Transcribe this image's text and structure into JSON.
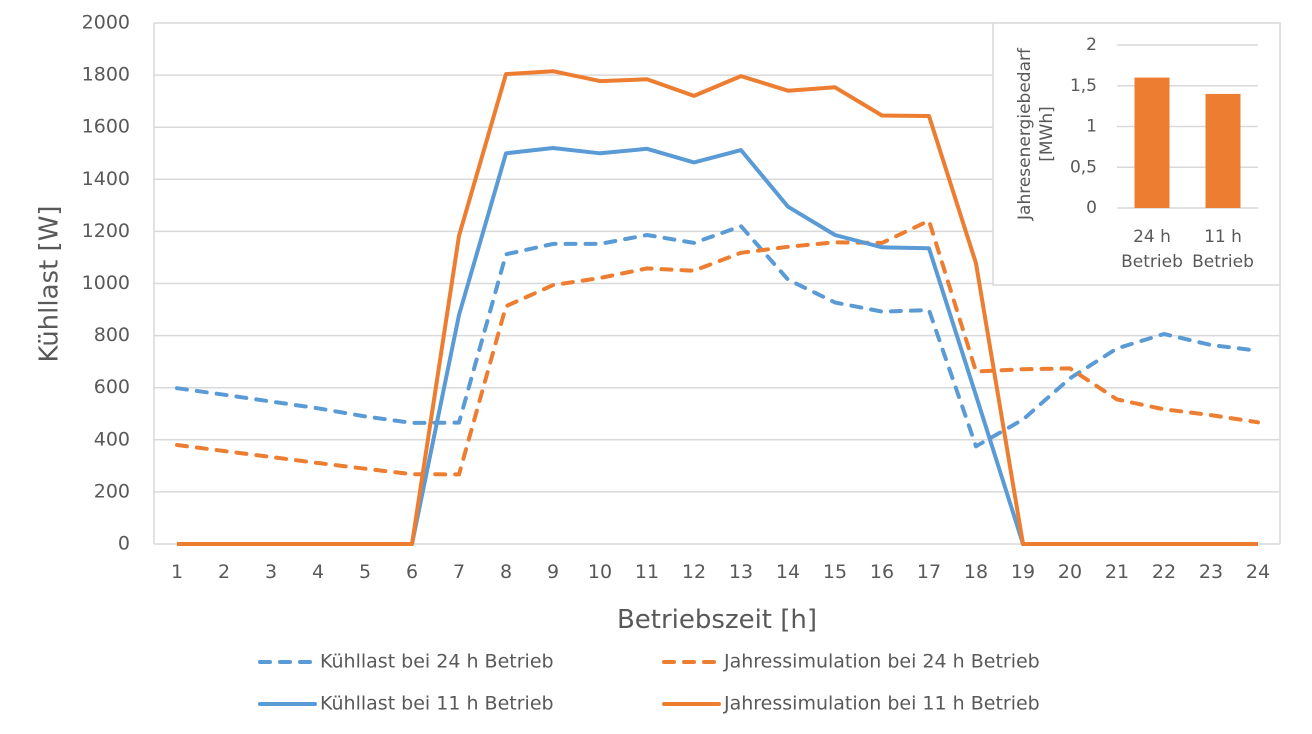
{
  "chart_data": [
    {
      "type": "line",
      "title": "",
      "xlabel": "Betriebszeit [h]",
      "ylabel": "Kühllast [W]",
      "ylim": [
        0,
        2000
      ],
      "yticks": [
        "0",
        "200",
        "400",
        "600",
        "800",
        "1000",
        "1200",
        "1400",
        "1600",
        "1800",
        "2000"
      ],
      "ytick_values": [
        0,
        200,
        400,
        600,
        800,
        1000,
        1200,
        1400,
        1600,
        1800,
        2000
      ],
      "x": [
        "1",
        "2",
        "3",
        "4",
        "5",
        "6",
        "7",
        "8",
        "9",
        "10",
        "11",
        "12",
        "13",
        "14",
        "15",
        "16",
        "17",
        "18",
        "19",
        "20",
        "21",
        "22",
        "23",
        "24"
      ],
      "grid": true,
      "legend_position": "bottom",
      "series": [
        {
          "name": "Kühllast bei 24 h Betrieb",
          "color": "#5B9BD5",
          "style": "dashed",
          "values": [
            598,
            573,
            547,
            521,
            490,
            465,
            466,
            1112,
            1152,
            1152,
            1186,
            1156,
            1220,
            1015,
            927,
            892,
            898,
            375,
            478,
            636,
            751,
            806,
            764,
            742
          ]
        },
        {
          "name": "Jahressimulation bei 24 h Betrieb",
          "color": "#ED7D31",
          "style": "dashed",
          "values": [
            380,
            357,
            334,
            311,
            289,
            268,
            267,
            913,
            994,
            1021,
            1058,
            1049,
            1118,
            1141,
            1158,
            1156,
            1241,
            662,
            671,
            674,
            555,
            517,
            495,
            467
          ]
        },
        {
          "name": "Kühllast bei 11 h Betrieb",
          "color": "#5B9BD5",
          "style": "solid",
          "values": [
            0,
            0,
            0,
            0,
            0,
            0,
            879,
            1500,
            1520,
            1500,
            1517,
            1465,
            1512,
            1295,
            1186,
            1139,
            1135,
            570,
            0,
            0,
            0,
            0,
            0,
            0
          ]
        },
        {
          "name": "Jahressimulation bei 11 h Betrieb",
          "color": "#ED7D31",
          "style": "solid",
          "values": [
            0,
            0,
            0,
            0,
            0,
            0,
            1183,
            1804,
            1815,
            1777,
            1784,
            1720,
            1796,
            1740,
            1753,
            1645,
            1643,
            1077,
            0,
            0,
            0,
            0,
            0,
            0
          ]
        }
      ]
    },
    {
      "type": "bar",
      "title": "",
      "ylabel": "Jahresenergiebedarf [MWh]",
      "ylabel_lines": [
        "Jahresenergiebedarf",
        "[MWh]"
      ],
      "ylim": [
        0,
        2
      ],
      "yticks": [
        "0",
        "0,5",
        "1",
        "1,5",
        "2"
      ],
      "ytick_values": [
        0,
        0.5,
        1,
        1.5,
        2
      ],
      "categories": [
        "24 h Betrieb",
        "11 h Betrieb"
      ],
      "category_lines": [
        [
          "24 h",
          "Betrieb"
        ],
        [
          "11 h",
          "Betrieb"
        ]
      ],
      "values": [
        1.6,
        1.4
      ],
      "color": "#ED7D31",
      "grid": true,
      "legend_position": "none"
    }
  ]
}
